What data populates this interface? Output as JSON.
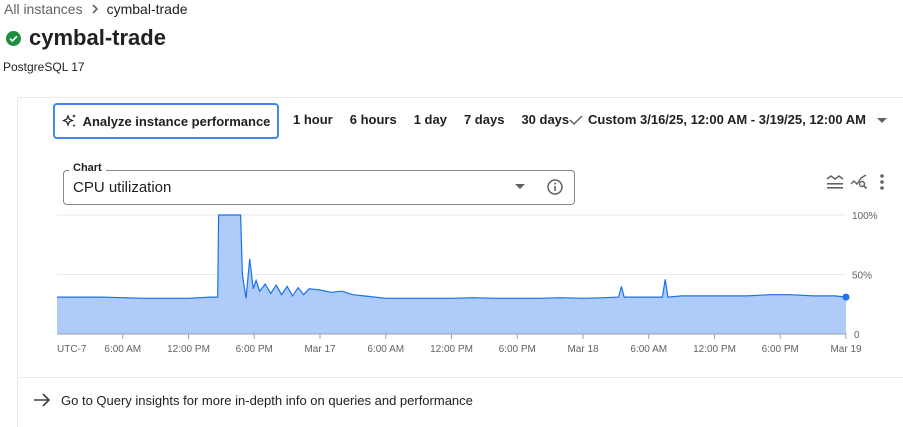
{
  "breadcrumb": {
    "parent": "All instances",
    "current": "cymbal-trade"
  },
  "instance": {
    "name": "cymbal-trade",
    "status": "running",
    "status_color": "#1e8e3e",
    "version": "PostgreSQL 17"
  },
  "toolbar": {
    "analyze_label": "Analyze instance performance",
    "ranges": [
      "1 hour",
      "6 hours",
      "1 day",
      "7 days",
      "30 days"
    ],
    "custom_label": "Custom 3/16/25, 12:00 AM - 3/19/25, 12:00 AM",
    "custom_selected": true
  },
  "chart_select": {
    "label": "Chart",
    "value": "CPU utilization"
  },
  "chart_icons": [
    "legend-icon",
    "explore-icon",
    "more-vert-icon"
  ],
  "footer": {
    "link": "Go to Query insights for more in-depth info on queries and performance"
  },
  "chart_data": {
    "type": "area",
    "series_color": "#1a73e8",
    "fill_color": "#aecbfa",
    "xlim": [
      "2025-03-16T00:00",
      "2025-03-19T00:00"
    ],
    "ylim": [
      0,
      100
    ],
    "y_ticks": [
      {
        "v": 100,
        "label": "100%"
      },
      {
        "v": 50,
        "label": "50%"
      },
      {
        "v": 0,
        "label": "0"
      }
    ],
    "x_ticks": [
      {
        "t": "2025-03-16T00:00",
        "label": "UTC-7"
      },
      {
        "t": "2025-03-16T06:00",
        "label": "6:00 AM"
      },
      {
        "t": "2025-03-16T12:00",
        "label": "12:00 PM"
      },
      {
        "t": "2025-03-16T18:00",
        "label": "6:00 PM"
      },
      {
        "t": "2025-03-17T00:00",
        "label": "Mar 17"
      },
      {
        "t": "2025-03-17T06:00",
        "label": "6:00 AM"
      },
      {
        "t": "2025-03-17T12:00",
        "label": "12:00 PM"
      },
      {
        "t": "2025-03-17T18:00",
        "label": "6:00 PM"
      },
      {
        "t": "2025-03-18T00:00",
        "label": "Mar 18"
      },
      {
        "t": "2025-03-18T06:00",
        "label": "6:00 AM"
      },
      {
        "t": "2025-03-18T12:00",
        "label": "12:00 PM"
      },
      {
        "t": "2025-03-18T18:00",
        "label": "6:00 PM"
      },
      {
        "t": "2025-03-19T00:00",
        "label": "Mar 19"
      }
    ],
    "grid": true,
    "points": [
      [
        "2025-03-16T00:00",
        31
      ],
      [
        "2025-03-16T02:00",
        31
      ],
      [
        "2025-03-16T04:00",
        31
      ],
      [
        "2025-03-16T06:00",
        30.5
      ],
      [
        "2025-03-16T08:00",
        30
      ],
      [
        "2025-03-16T10:00",
        30
      ],
      [
        "2025-03-16T12:00",
        30
      ],
      [
        "2025-03-16T14:00",
        31
      ],
      [
        "2025-03-16T14:40",
        31
      ],
      [
        "2025-03-16T14:45",
        100
      ],
      [
        "2025-03-16T16:45",
        100
      ],
      [
        "2025-03-16T16:55",
        50
      ],
      [
        "2025-03-16T17:15",
        30
      ],
      [
        "2025-03-16T17:35",
        63
      ],
      [
        "2025-03-16T17:55",
        38
      ],
      [
        "2025-03-16T18:10",
        45
      ],
      [
        "2025-03-16T18:30",
        36
      ],
      [
        "2025-03-16T19:00",
        42
      ],
      [
        "2025-03-16T19:30",
        34
      ],
      [
        "2025-03-16T20:00",
        41
      ],
      [
        "2025-03-16T20:30",
        33
      ],
      [
        "2025-03-16T21:00",
        40
      ],
      [
        "2025-03-16T21:30",
        32
      ],
      [
        "2025-03-16T22:00",
        39
      ],
      [
        "2025-03-16T22:30",
        33
      ],
      [
        "2025-03-16T23:00",
        38
      ],
      [
        "2025-03-17T00:00",
        37
      ],
      [
        "2025-03-17T01:00",
        35
      ],
      [
        "2025-03-17T02:00",
        36
      ],
      [
        "2025-03-17T03:00",
        33
      ],
      [
        "2025-03-17T04:00",
        32
      ],
      [
        "2025-03-17T05:00",
        31
      ],
      [
        "2025-03-17T06:00",
        30
      ],
      [
        "2025-03-17T08:00",
        30
      ],
      [
        "2025-03-17T10:00",
        30
      ],
      [
        "2025-03-17T12:00",
        30
      ],
      [
        "2025-03-17T14:00",
        30.5
      ],
      [
        "2025-03-17T16:00",
        30
      ],
      [
        "2025-03-17T18:00",
        30
      ],
      [
        "2025-03-17T20:00",
        30
      ],
      [
        "2025-03-17T22:00",
        30.5
      ],
      [
        "2025-03-18T00:00",
        30
      ],
      [
        "2025-03-18T02:00",
        30.5
      ],
      [
        "2025-03-18T03:15",
        31
      ],
      [
        "2025-03-18T03:30",
        40
      ],
      [
        "2025-03-18T03:45",
        31
      ],
      [
        "2025-03-18T05:00",
        31
      ],
      [
        "2025-03-18T07:15",
        31
      ],
      [
        "2025-03-18T07:30",
        46
      ],
      [
        "2025-03-18T07:45",
        31
      ],
      [
        "2025-03-18T09:00",
        32
      ],
      [
        "2025-03-18T11:00",
        32
      ],
      [
        "2025-03-18T13:00",
        32
      ],
      [
        "2025-03-18T15:00",
        32
      ],
      [
        "2025-03-18T17:00",
        33
      ],
      [
        "2025-03-18T19:00",
        33
      ],
      [
        "2025-03-18T21:00",
        32
      ],
      [
        "2025-03-18T23:00",
        32
      ],
      [
        "2025-03-19T00:00",
        31
      ]
    ]
  }
}
